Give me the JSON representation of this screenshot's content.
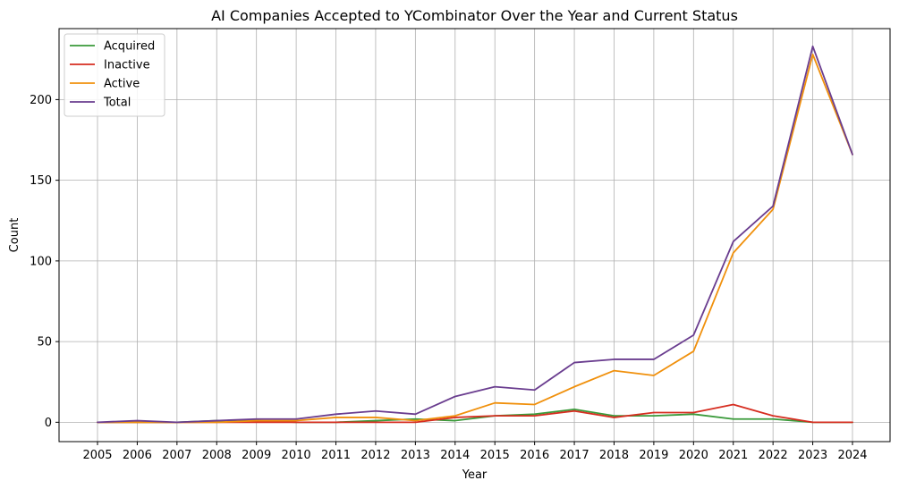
{
  "chart_data": {
    "type": "line",
    "title": "AI Companies Accepted to YCombinator Over the Year and Current Status",
    "xlabel": "Year",
    "ylabel": "Count",
    "ylim": [
      -12,
      244
    ],
    "yticks": [
      0,
      50,
      100,
      150,
      200
    ],
    "grid": true,
    "legend_position": "top-left",
    "categories": [
      "2005",
      "2006",
      "2007",
      "2008",
      "2009",
      "2010",
      "2011",
      "2012",
      "2013",
      "2014",
      "2015",
      "2016",
      "2017",
      "2018",
      "2019",
      "2020",
      "2021",
      "2022",
      "2023",
      "2024"
    ],
    "series": [
      {
        "name": "Acquired",
        "color": "#3a9a3a",
        "values": [
          0,
          0,
          0,
          1,
          1,
          0,
          0,
          1,
          2,
          1,
          4,
          5,
          8,
          4,
          4,
          5,
          2,
          2,
          0,
          0
        ]
      },
      {
        "name": "Inactive",
        "color": "#d62d20",
        "values": [
          0,
          0,
          0,
          0,
          0,
          0,
          0,
          0,
          0,
          3,
          4,
          4,
          7,
          3,
          6,
          6,
          11,
          4,
          0,
          0
        ]
      },
      {
        "name": "Active",
        "color": "#f0900c",
        "values": [
          0,
          0,
          0,
          0,
          1,
          1,
          3,
          3,
          1,
          4,
          12,
          11,
          22,
          32,
          29,
          44,
          105,
          132,
          228,
          166
        ]
      },
      {
        "name": "Total",
        "color": "#6a3d8f",
        "values": [
          0,
          1,
          0,
          1,
          2,
          2,
          5,
          7,
          5,
          16,
          22,
          20,
          37,
          39,
          39,
          54,
          112,
          134,
          233,
          166
        ]
      }
    ]
  }
}
